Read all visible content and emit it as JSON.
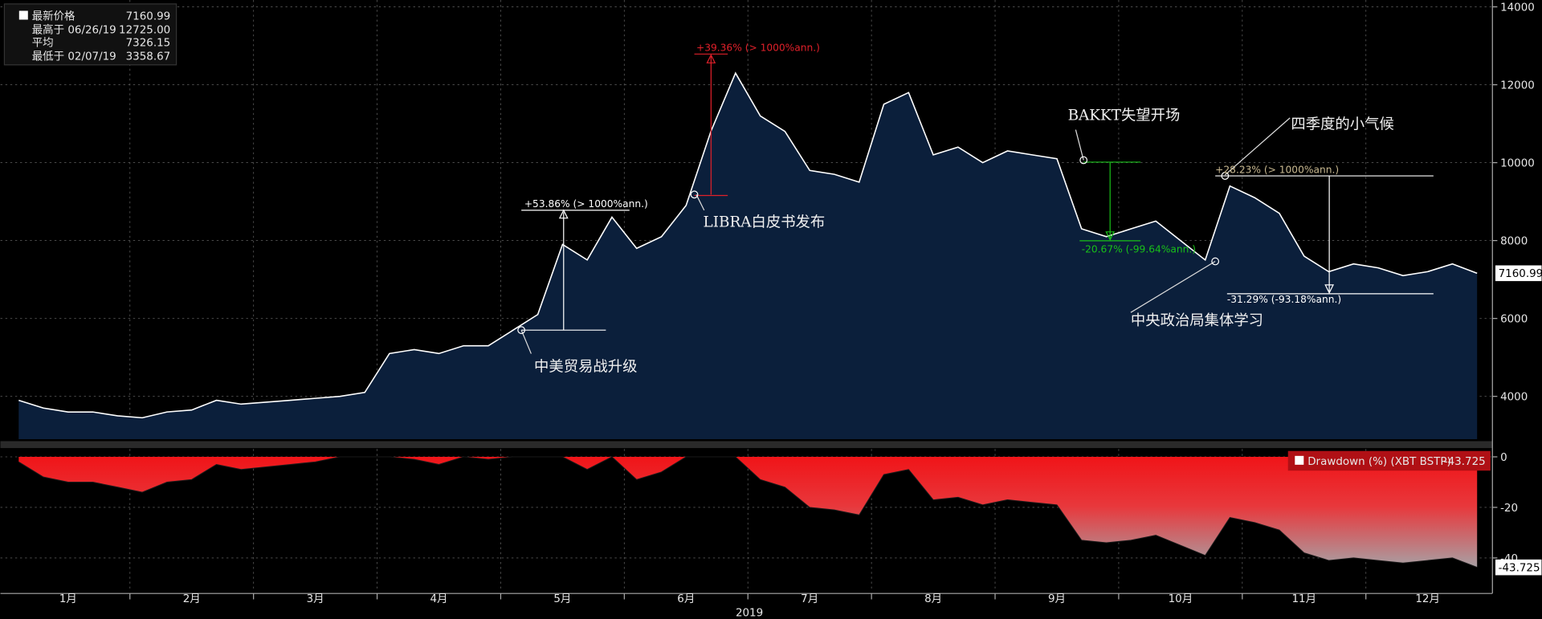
{
  "chart_data": [
    {
      "type": "area",
      "categories": [
        null,
        null,
        "1月",
        null,
        null,
        null,
        null,
        "2月",
        null,
        null,
        null,
        null,
        "3月",
        null,
        null,
        null,
        null,
        "4月",
        null,
        null,
        null,
        null,
        "5月",
        null,
        null,
        null,
        null,
        "6月",
        null,
        null,
        null,
        null,
        "7月",
        null,
        null,
        null,
        null,
        "8月",
        null,
        null,
        null,
        null,
        "9月",
        null,
        null,
        null,
        null,
        "10月",
        null,
        null,
        null,
        null,
        "11月",
        null,
        null,
        null,
        null,
        "12月",
        null,
        null
      ],
      "x_label": "2019",
      "series": [
        {
          "name": "最新价格",
          "color": "#ffffff",
          "values": [
            3900,
            3700,
            3600,
            3600,
            3500,
            3450,
            3600,
            3650,
            3900,
            3800,
            3850,
            3900,
            3950,
            4000,
            4100,
            5100,
            5200,
            5100,
            5300,
            5300,
            5700,
            6100,
            7900,
            7500,
            8600,
            7800,
            8100,
            8900,
            10800,
            12300,
            11200,
            10800,
            9800,
            9700,
            9500,
            11500,
            11800,
            10200,
            10400,
            10000,
            10300,
            10200,
            10100,
            8300,
            8100,
            8300,
            8500,
            8000,
            7500,
            9400,
            9100,
            8700,
            7600,
            7200,
            7400,
            7300,
            7100,
            7200,
            7400,
            7160.99
          ]
        }
      ],
      "fill": "#0b1f3b",
      "ylim": [
        2900,
        14100
      ],
      "yticks": [
        4000,
        6000,
        8000,
        10000,
        12000,
        14000
      ],
      "grid": true,
      "legend_items": [
        {
          "label": "最高于 06/26/19",
          "value": "12725.00"
        },
        {
          "label": "平均",
          "value": "7326.15"
        },
        {
          "label": "最低于 02/07/19",
          "value": "3358.67"
        }
      ],
      "annotations": [
        {
          "text": "+53.86% (> 1000%ann.)",
          "color": "#ffffff"
        },
        {
          "text": "中美贸易战升级"
        },
        {
          "text": "+39.36% (> 1000%ann.)",
          "color": "#e0202a"
        },
        {
          "text": "LIBRA白皮书发布"
        },
        {
          "text": "BAKKT失望开场"
        },
        {
          "text": "-20.67% (-99.64%ann.)",
          "color": "#18c018"
        },
        {
          "text": "四季度的小气候"
        },
        {
          "text": "+28.23% (> 1000%ann.)",
          "color": "#c8b890"
        },
        {
          "text": "-31.29% (-93.18%ann.)",
          "color": "#ffffff"
        },
        {
          "text": "中央政治局集体学习"
        }
      ]
    },
    {
      "type": "area",
      "series": [
        {
          "name": "Drawdown (%) (XBT BSTP)",
          "color": "#e8151a",
          "values": [
            -2,
            -8,
            -10,
            -10,
            -12,
            -14,
            -10,
            -9,
            -3,
            -5,
            -4,
            -3,
            -2,
            0,
            0,
            0,
            -1,
            -3,
            0,
            -1,
            0,
            0,
            0,
            -5,
            0,
            -9,
            -6,
            0,
            0,
            0,
            -9,
            -12,
            -20,
            -21,
            -23,
            -7,
            -5,
            -17,
            -16,
            -19,
            -17,
            -18,
            -19,
            -33,
            -34,
            -33,
            -31,
            -35,
            -39,
            -24,
            -26,
            -29,
            -38,
            -41,
            -40,
            -41,
            -42,
            -41,
            -40,
            -43.725
          ]
        }
      ],
      "ylim": [
        -52.5,
        2.7
      ],
      "yticks": [
        0,
        -20,
        -40
      ],
      "grid": true
    }
  ]
}
